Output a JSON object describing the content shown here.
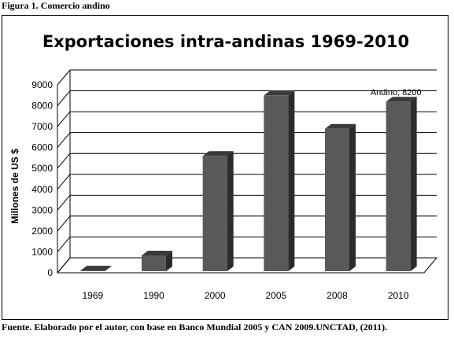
{
  "figure": {
    "caption": "Figura 1. Comercio andino",
    "source": "Fuente. Elaborado por el autor, con base en Banco Mundial 2005 y CAN 2009.UNCTAD, (2011)."
  },
  "colors": {
    "bar_front": "#595959",
    "bar_side": "#2b2b2b",
    "bar_top": "#3a3a3a",
    "grid": "#000000"
  },
  "chart_data": {
    "type": "bar",
    "title": "Exportaciones intra-andinas 1969-2010",
    "xlabel": "",
    "ylabel": "Millones de US $",
    "categories": [
      "1969",
      "1990",
      "2000",
      "2005",
      "2008",
      "2010"
    ],
    "series": [
      {
        "name": "Andino",
        "values": [
          110,
          830,
          5600,
          8500,
          6900,
          8200
        ]
      }
    ],
    "ylim": [
      0,
      9000
    ],
    "yticks": [
      0,
      1000,
      2000,
      3000,
      4000,
      5000,
      6000,
      7000,
      8000,
      9000
    ],
    "grid": true,
    "legend": "none",
    "annotations": [
      {
        "text": "Andino, 8200",
        "category": "2010"
      }
    ]
  }
}
